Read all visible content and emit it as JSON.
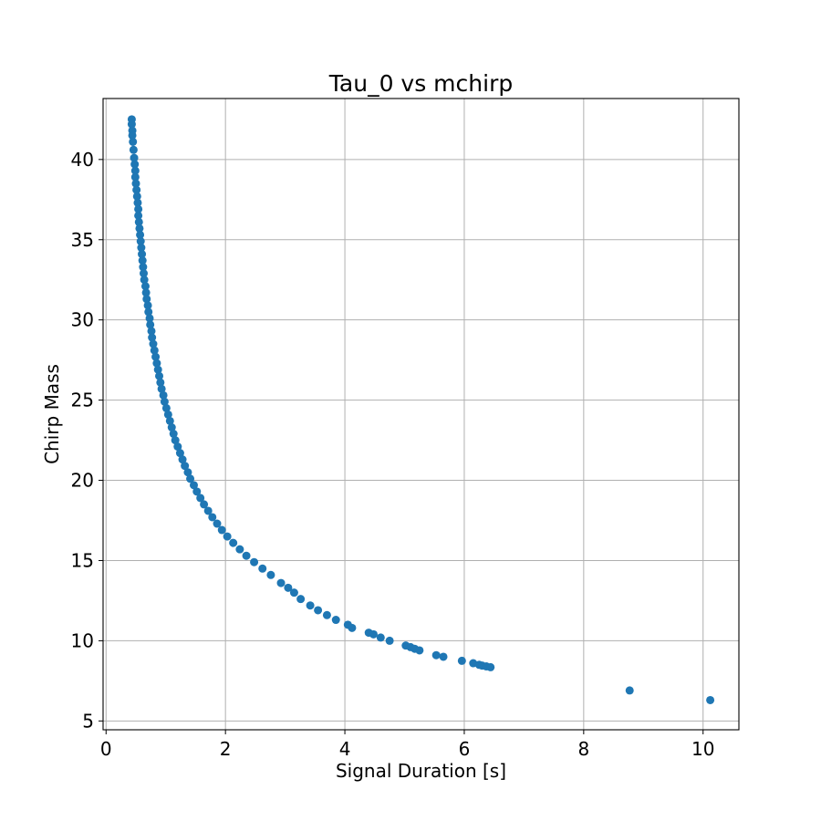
{
  "chart_data": {
    "type": "scatter",
    "title": "Tau_0 vs mchirp",
    "xlabel": "Signal Duration [s]",
    "ylabel": "Chirp Mass",
    "xlim": [
      -0.05,
      10.6
    ],
    "ylim": [
      4.45,
      43.8
    ],
    "xticks": [
      0,
      2,
      4,
      6,
      8,
      10
    ],
    "yticks": [
      5,
      10,
      15,
      20,
      25,
      30,
      35,
      40
    ],
    "grid": true,
    "marker_color": "#1f77b4",
    "points": [
      [
        0.43,
        42.5
      ],
      [
        0.43,
        42.2
      ],
      [
        0.44,
        41.8
      ],
      [
        0.44,
        41.5
      ],
      [
        0.45,
        41.1
      ],
      [
        0.46,
        40.6
      ],
      [
        0.47,
        40.1
      ],
      [
        0.48,
        39.7
      ],
      [
        0.49,
        39.3
      ],
      [
        0.49,
        38.9
      ],
      [
        0.5,
        38.5
      ],
      [
        0.51,
        38.1
      ],
      [
        0.52,
        37.7
      ],
      [
        0.53,
        37.3
      ],
      [
        0.54,
        36.9
      ],
      [
        0.54,
        36.5
      ],
      [
        0.55,
        36.1
      ],
      [
        0.56,
        35.7
      ],
      [
        0.57,
        35.3
      ],
      [
        0.58,
        34.9
      ],
      [
        0.59,
        34.5
      ],
      [
        0.6,
        34.1
      ],
      [
        0.61,
        33.7
      ],
      [
        0.62,
        33.3
      ],
      [
        0.63,
        32.9
      ],
      [
        0.64,
        32.5
      ],
      [
        0.66,
        32.1
      ],
      [
        0.67,
        31.7
      ],
      [
        0.68,
        31.3
      ],
      [
        0.7,
        30.9
      ],
      [
        0.71,
        30.5
      ],
      [
        0.73,
        30.1
      ],
      [
        0.74,
        29.7
      ],
      [
        0.76,
        29.3
      ],
      [
        0.77,
        28.9
      ],
      [
        0.79,
        28.5
      ],
      [
        0.81,
        28.1
      ],
      [
        0.83,
        27.7
      ],
      [
        0.85,
        27.3
      ],
      [
        0.87,
        26.9
      ],
      [
        0.89,
        26.5
      ],
      [
        0.91,
        26.1
      ],
      [
        0.93,
        25.7
      ],
      [
        0.96,
        25.3
      ],
      [
        0.98,
        24.9
      ],
      [
        1.01,
        24.5
      ],
      [
        1.04,
        24.1
      ],
      [
        1.07,
        23.7
      ],
      [
        1.1,
        23.3
      ],
      [
        1.13,
        22.9
      ],
      [
        1.16,
        22.5
      ],
      [
        1.2,
        22.1
      ],
      [
        1.24,
        21.7
      ],
      [
        1.28,
        21.3
      ],
      [
        1.32,
        20.9
      ],
      [
        1.37,
        20.5
      ],
      [
        1.41,
        20.1
      ],
      [
        1.47,
        19.7
      ],
      [
        1.52,
        19.3
      ],
      [
        1.58,
        18.9
      ],
      [
        1.64,
        18.5
      ],
      [
        1.71,
        18.1
      ],
      [
        1.78,
        17.7
      ],
      [
        1.86,
        17.3
      ],
      [
        1.94,
        16.9
      ],
      [
        2.03,
        16.5
      ],
      [
        2.13,
        16.1
      ],
      [
        2.24,
        15.7
      ],
      [
        2.35,
        15.3
      ],
      [
        2.48,
        14.9
      ],
      [
        2.62,
        14.5
      ],
      [
        2.76,
        14.1
      ],
      [
        2.93,
        13.6
      ],
      [
        3.05,
        13.3
      ],
      [
        3.15,
        13.0
      ],
      [
        3.26,
        12.6
      ],
      [
        3.42,
        12.2
      ],
      [
        3.55,
        11.9
      ],
      [
        3.7,
        11.6
      ],
      [
        3.85,
        11.3
      ],
      [
        4.05,
        11.0
      ],
      [
        4.12,
        10.8
      ],
      [
        4.4,
        10.5
      ],
      [
        4.48,
        10.4
      ],
      [
        4.6,
        10.2
      ],
      [
        4.75,
        10.0
      ],
      [
        5.02,
        9.7
      ],
      [
        5.1,
        9.6
      ],
      [
        5.17,
        9.5
      ],
      [
        5.25,
        9.4
      ],
      [
        5.53,
        9.1
      ],
      [
        5.65,
        9.0
      ],
      [
        5.96,
        8.75
      ],
      [
        6.15,
        8.6
      ],
      [
        6.25,
        8.5
      ],
      [
        6.3,
        8.45
      ],
      [
        6.37,
        8.4
      ],
      [
        6.44,
        8.35
      ],
      [
        8.77,
        6.9
      ],
      [
        10.12,
        6.3
      ]
    ]
  }
}
